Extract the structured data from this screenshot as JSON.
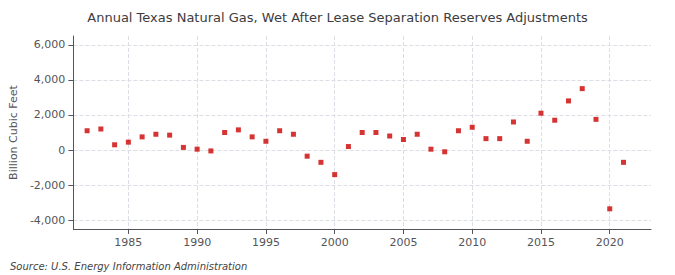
{
  "chart_data": {
    "type": "scatter",
    "title": "Annual Texas Natural Gas, Wet After Lease Separation Reserves Adjustments",
    "ylabel": "Billion Cubic Feet",
    "annotations": [
      "Source: U.S. Energy Information Administration"
    ],
    "x": [
      1982,
      1983,
      1984,
      1985,
      1986,
      1987,
      1988,
      1989,
      1990,
      1991,
      1992,
      1993,
      1994,
      1995,
      1996,
      1997,
      1998,
      1999,
      2000,
      2001,
      2002,
      2003,
      2004,
      2005,
      2006,
      2007,
      2008,
      2009,
      2010,
      2011,
      2012,
      2013,
      2014,
      2015,
      2016,
      2017,
      2018,
      2019,
      2020,
      2021
    ],
    "values": [
      1100,
      1200,
      300,
      450,
      750,
      900,
      850,
      150,
      50,
      -50,
      1000,
      1150,
      750,
      500,
      1100,
      900,
      -350,
      -700,
      -1400,
      200,
      1000,
      1000,
      800,
      600,
      900,
      50,
      -100,
      1100,
      1300,
      650,
      650,
      1600,
      500,
      2100,
      1700,
      2800,
      3500,
      1750,
      -3350,
      -700
    ],
    "color": "#cc0000",
    "marker": "square",
    "xlim": [
      1981,
      2023
    ],
    "xticks": [
      1985,
      1990,
      1995,
      2000,
      2005,
      2010,
      2015,
      2020
    ],
    "ylim": [
      -4500,
      6500
    ],
    "yticks": [
      {
        "value": -4000,
        "label": "-4,000"
      },
      {
        "value": -2000,
        "label": "-2,000"
      },
      0,
      {
        "value": 2000,
        "label": "2,000"
      },
      {
        "value": 4000,
        "label": "4,000"
      },
      {
        "value": 6000,
        "label": "6,000"
      }
    ],
    "grid": true
  }
}
